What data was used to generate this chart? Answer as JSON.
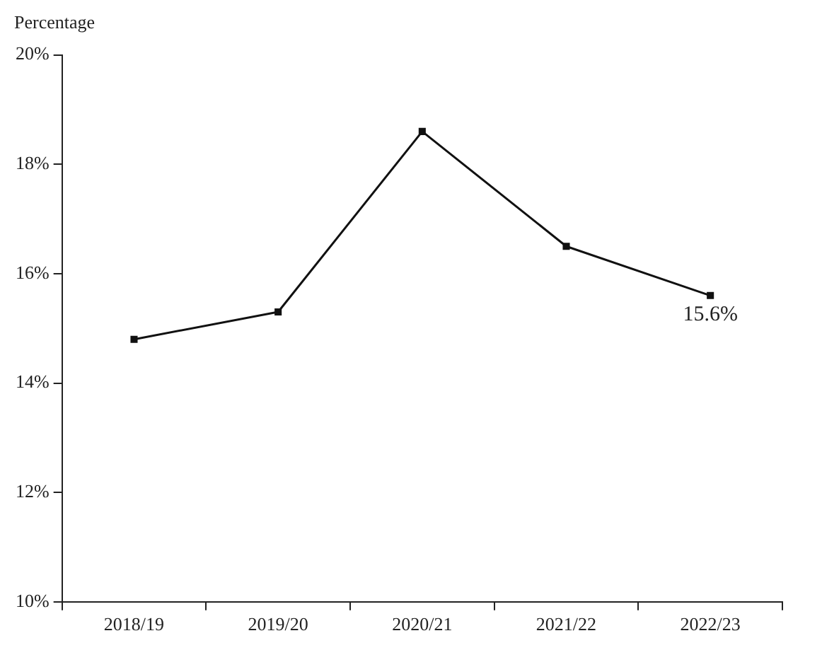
{
  "chart_data": {
    "type": "line",
    "ylabel": "Percentage",
    "categories": [
      "2018/19",
      "2019/20",
      "2020/21",
      "2021/22",
      "2022/23"
    ],
    "series": [
      {
        "color": "#111111",
        "values": [
          14.8,
          15.3,
          18.6,
          16.5,
          15.6
        ],
        "value_labels": [
          null,
          null,
          null,
          null,
          "15.6%"
        ]
      }
    ],
    "ylim": [
      10,
      20
    ],
    "yticks": [
      {
        "value": 10,
        "label": "10%"
      },
      {
        "value": 12,
        "label": "12%"
      },
      {
        "value": 14,
        "label": "14%"
      },
      {
        "value": 16,
        "label": "16%"
      },
      {
        "value": 18,
        "label": "18%"
      },
      {
        "value": 20,
        "label": "20%"
      }
    ],
    "grid": false,
    "legend": false,
    "marker": "square",
    "line_style": "solid"
  }
}
